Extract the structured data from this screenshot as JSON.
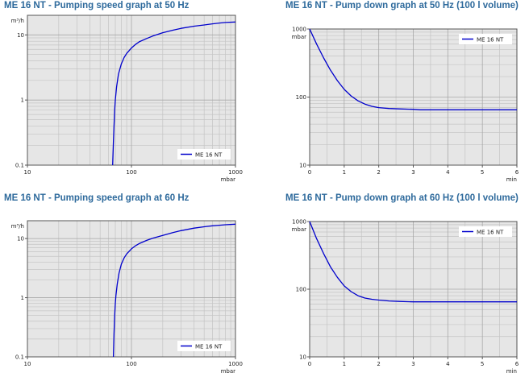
{
  "chart_data": [
    {
      "id": "c1",
      "type": "line",
      "title": "ME 16 NT - Pumping speed graph at 50 Hz",
      "ylabel": "m³/h",
      "xlabel": "mbar",
      "xscale": "log",
      "yscale": "log",
      "xlim": [
        10,
        1000
      ],
      "ylim": [
        0.1,
        20
      ],
      "xticks": [
        "10",
        "100",
        "1000"
      ],
      "yticks": [
        "0.1",
        "1",
        "10"
      ],
      "legend_position": "bottom-right",
      "grid": true,
      "series": [
        {
          "name": "ME 16 NT",
          "color": "#0000cc",
          "x": [
            66,
            67,
            68,
            69,
            70,
            72,
            75,
            80,
            85,
            90,
            100,
            110,
            120,
            140,
            160,
            200,
            250,
            300,
            400,
            500,
            600,
            700,
            800,
            1000
          ],
          "y": [
            0.1,
            0.22,
            0.4,
            0.7,
            1.0,
            1.6,
            2.5,
            3.6,
            4.5,
            5.2,
            6.3,
            7.2,
            7.9,
            8.8,
            9.6,
            10.8,
            11.8,
            12.6,
            13.6,
            14.2,
            14.8,
            15.2,
            15.5,
            15.8
          ]
        }
      ]
    },
    {
      "id": "c2",
      "type": "line",
      "title": "ME 16 NT - Pump down graph at 50 Hz (100 l volume)",
      "ylabel": "mbar",
      "xlabel": "min",
      "xscale": "linear",
      "yscale": "log",
      "xlim": [
        0,
        6
      ],
      "ylim": [
        10,
        1000
      ],
      "xticks": [
        "0",
        "1",
        "2",
        "3",
        "4",
        "5",
        "6"
      ],
      "yticks": [
        "10",
        "100",
        "1000"
      ],
      "legend_position": "top-right",
      "grid": true,
      "series": [
        {
          "name": "ME 16 NT",
          "color": "#0000cc",
          "x": [
            0,
            0.2,
            0.4,
            0.6,
            0.8,
            1.0,
            1.2,
            1.4,
            1.6,
            1.8,
            2.0,
            2.3,
            2.6,
            3.0,
            3.2,
            4.0,
            5.0,
            6.0
          ],
          "y": [
            1000,
            600,
            380,
            250,
            175,
            130,
            104,
            88,
            79,
            73,
            70,
            68,
            67,
            66,
            65,
            65,
            65,
            65
          ]
        }
      ]
    },
    {
      "id": "c3",
      "type": "line",
      "title": "ME 16 NT - Pumping speed graph at 60 Hz",
      "ylabel": "m³/h",
      "xlabel": "mbar",
      "xscale": "log",
      "yscale": "log",
      "xlim": [
        10,
        1000
      ],
      "ylim": [
        0.1,
        20
      ],
      "xticks": [
        "10",
        "100",
        "1000"
      ],
      "yticks": [
        "0.1",
        "1",
        "10"
      ],
      "legend_position": "bottom-right",
      "grid": true,
      "series": [
        {
          "name": "ME 16 NT",
          "color": "#0000cc",
          "x": [
            67,
            68,
            69,
            70,
            71,
            73,
            76,
            80,
            85,
            90,
            100,
            110,
            120,
            140,
            160,
            200,
            250,
            300,
            400,
            500,
            600,
            700,
            800,
            1000
          ],
          "y": [
            0.1,
            0.25,
            0.5,
            0.8,
            1.1,
            1.7,
            2.6,
            3.7,
            4.7,
            5.5,
            6.7,
            7.6,
            8.3,
            9.3,
            10.1,
            11.3,
            12.6,
            13.6,
            15.0,
            15.8,
            16.4,
            16.8,
            17.1,
            17.5
          ]
        }
      ]
    },
    {
      "id": "c4",
      "type": "line",
      "title": "ME 16 NT - Pump down graph at 60 Hz (100 l volume)",
      "ylabel": "mbar",
      "xlabel": "min",
      "xscale": "linear",
      "yscale": "log",
      "xlim": [
        0,
        6
      ],
      "ylim": [
        10,
        1000
      ],
      "xticks": [
        "0",
        "1",
        "2",
        "3",
        "4",
        "5",
        "6"
      ],
      "yticks": [
        "10",
        "100",
        "1000"
      ],
      "legend_position": "top-right",
      "grid": true,
      "series": [
        {
          "name": "ME 16 NT",
          "color": "#0000cc",
          "x": [
            0,
            0.2,
            0.4,
            0.6,
            0.8,
            1.0,
            1.2,
            1.4,
            1.6,
            1.8,
            2.0,
            2.3,
            2.6,
            3.0,
            3.2,
            4.0,
            5.0,
            6.0
          ],
          "y": [
            1000,
            560,
            340,
            215,
            150,
            112,
            92,
            80,
            74,
            71,
            69,
            67,
            66,
            65,
            65,
            65,
            65,
            65
          ]
        }
      ]
    }
  ]
}
